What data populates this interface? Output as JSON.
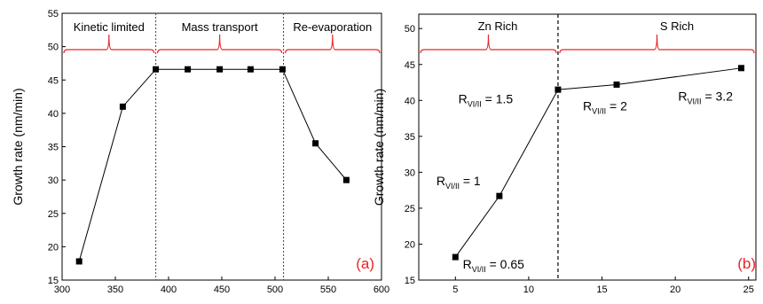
{
  "chart_data": [
    {
      "type": "line",
      "title": "",
      "xlabel": "Temperature (°C)",
      "ylabel": "Growth rate (nm/min)",
      "xlim": [
        300,
        600
      ],
      "ylim": [
        15,
        55
      ],
      "xticks": [
        "300",
        "350",
        "400",
        "450",
        "500",
        "550",
        "600"
      ],
      "yticks": [
        "15",
        "20",
        "25",
        "30",
        "35",
        "40",
        "45",
        "50",
        "55"
      ],
      "x": [
        316,
        357,
        388,
        418,
        448,
        477,
        507,
        538,
        567
      ],
      "series": [
        {
          "values": [
            17.8,
            41.0,
            46.6,
            46.6,
            46.6,
            46.6,
            46.6,
            35.5,
            30.0
          ]
        }
      ],
      "dividers": [
        388,
        508
      ],
      "regions": [
        {
          "label": "Kinetic limited",
          "x_range": [
            300,
            388
          ]
        },
        {
          "label": "Mass transport",
          "x_range": [
            388,
            508
          ]
        },
        {
          "label": "Re-evaporation",
          "x_range": [
            508,
            600
          ]
        }
      ],
      "panel_label": "(a)",
      "grid": false,
      "legend": "none"
    },
    {
      "type": "line",
      "title": "",
      "xlabel": "Sulfur partial pressure (Pa)",
      "ylabel": "Growth rate (nm/min)",
      "xlim": [
        2.5,
        25.5
      ],
      "ylim": [
        15,
        52
      ],
      "xticks": [
        "5",
        "10",
        "15",
        "20",
        "25"
      ],
      "yticks": [
        "15",
        "20",
        "25",
        "30",
        "35",
        "40",
        "45",
        "50"
      ],
      "x": [
        5,
        8,
        12,
        16,
        24.5
      ],
      "series": [
        {
          "values": [
            18.2,
            26.7,
            41.5,
            42.2,
            44.5
          ]
        }
      ],
      "dividers": [
        12
      ],
      "regions": [
        {
          "label": "Zn Rich",
          "x_range": [
            2.5,
            12
          ]
        },
        {
          "label": "S Rich",
          "x_range": [
            12,
            25.5
          ]
        }
      ],
      "annotations": [
        {
          "prefix": "R",
          "sub": "VI/II",
          "suffix": " = 1.5",
          "x": 5.2,
          "y": 39.6
        },
        {
          "prefix": "R",
          "sub": "VI/II",
          "suffix": " = 2",
          "x": 13.7,
          "y": 38.6
        },
        {
          "prefix": "R",
          "sub": "VI/II",
          "suffix": " = 3.2",
          "x": 20.2,
          "y": 40.0
        },
        {
          "prefix": "R",
          "sub": "VI/II",
          "suffix": " = 1",
          "x": 3.7,
          "y": 28.2
        },
        {
          "prefix": "R",
          "sub": "VI/II",
          "suffix": " = 0.65",
          "x": 5.5,
          "y": 16.6
        }
      ],
      "panel_label": "(b)",
      "grid": false,
      "legend": "none"
    }
  ]
}
